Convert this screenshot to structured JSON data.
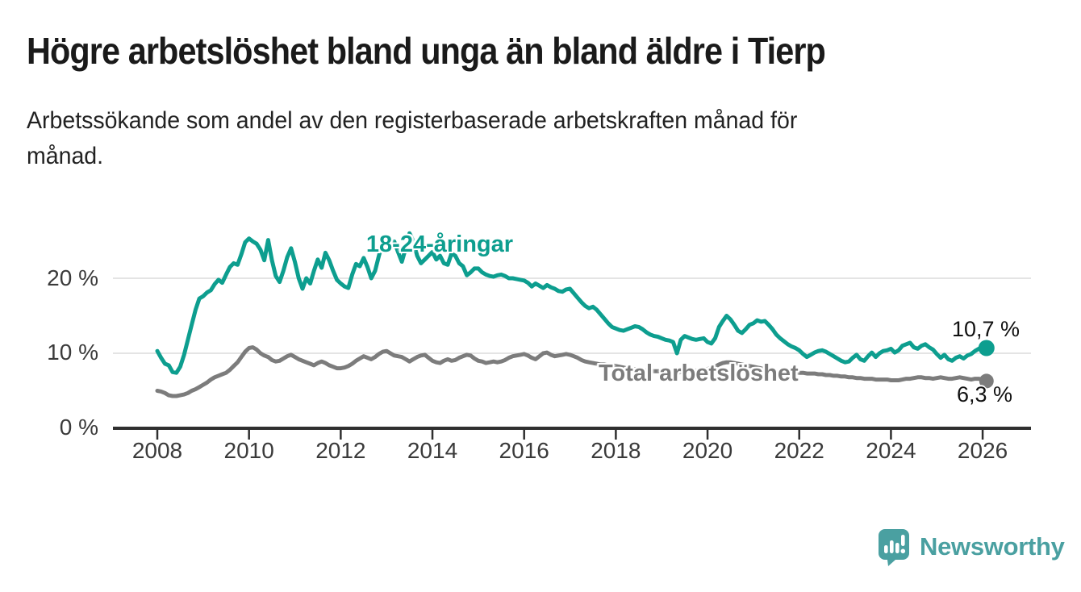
{
  "header": {
    "title": "Högre arbetslöshet bland unga än bland äldre i Tierp",
    "subtitle": "Arbetssökande som andel av den registerbaserade arbetskraften månad för\nmånad."
  },
  "footer": {
    "brand": "Newsworthy",
    "logo_icon": "speech-bubble-bar-chart-icon",
    "brand_color": "#4aa0a1"
  },
  "colors": {
    "background": "#ffffff",
    "title_text": "#1a1a1a",
    "tick_text": "#3a3a3a",
    "axis": "#2f2f2f",
    "gridline": "#dbdbdb",
    "youth_line": "#0d9e8f",
    "total_line": "#7c7c7c"
  },
  "chart_data": {
    "type": "line",
    "title": "Högre arbetslöshet bland unga än bland äldre i Tierp",
    "subtitle": "Arbetssökande som andel av den registerbaserade arbetskraften månad för månad.",
    "x_unit": "month",
    "x_start": "2008-01",
    "x_end": "2026-02",
    "x_tick_labels": [
      "2008",
      "2010",
      "2012",
      "2014",
      "2016",
      "2018",
      "2020",
      "2022",
      "2024",
      "2026"
    ],
    "y_tick_labels_top_to_bottom": [
      "20 %",
      "10 %",
      "0 %"
    ],
    "ylabel": "",
    "xlabel": "",
    "ylim": [
      0,
      27
    ],
    "grid": "horizontal",
    "legend_position": "inline-labels",
    "series": [
      {
        "name": "18-24-åringar",
        "color": "#0d9e8f",
        "end_label": "10,7 %",
        "end_value": 10.7,
        "values": [
          10.3,
          9.4,
          8.6,
          8.4,
          7.5,
          7.4,
          8.2,
          9.8,
          11.8,
          13.8,
          15.8,
          17.3,
          17.6,
          18.1,
          18.4,
          19.2,
          19.8,
          19.4,
          20.5,
          21.5,
          22.0,
          21.8,
          23.2,
          24.8,
          25.3,
          24.9,
          24.6,
          23.8,
          22.4,
          25.1,
          22.4,
          20.3,
          19.5,
          21.0,
          22.8,
          24.0,
          22.2,
          20.0,
          18.6,
          20.0,
          19.3,
          21.0,
          22.5,
          21.4,
          23.4,
          22.4,
          21.0,
          19.8,
          19.3,
          18.9,
          18.7,
          20.5,
          21.9,
          21.6,
          22.7,
          21.5,
          20.0,
          21.0,
          23.0,
          24.8,
          24.8,
          24.0,
          24.9,
          23.5,
          22.2,
          24.0,
          26.0,
          25.0,
          23.0,
          22.0,
          22.5,
          23.0,
          23.5,
          22.5,
          23.0,
          22.0,
          21.8,
          23.3,
          23.0,
          22.0,
          21.6,
          20.4,
          20.8,
          21.3,
          21.3,
          20.8,
          20.5,
          20.3,
          20.2,
          20.4,
          20.5,
          20.3,
          20.0,
          20.0,
          19.9,
          19.8,
          19.7,
          19.4,
          18.9,
          19.3,
          19.0,
          18.7,
          19.1,
          18.8,
          18.6,
          18.3,
          18.2,
          18.5,
          18.6,
          18.0,
          17.4,
          16.8,
          16.3,
          16.0,
          16.2,
          15.8,
          15.2,
          14.6,
          14.0,
          13.5,
          13.3,
          13.1,
          13.0,
          13.2,
          13.4,
          13.6,
          13.5,
          13.2,
          12.8,
          12.5,
          12.3,
          12.2,
          12.0,
          11.8,
          11.7,
          11.5,
          10.0,
          11.8,
          12.3,
          12.1,
          11.9,
          11.8,
          11.9,
          12.0,
          11.5,
          11.3,
          12.0,
          13.5,
          14.3,
          15.0,
          14.5,
          13.8,
          13.0,
          12.7,
          13.2,
          13.8,
          14.0,
          14.4,
          14.2,
          14.3,
          13.8,
          13.2,
          12.5,
          12.0,
          11.6,
          11.2,
          10.9,
          10.7,
          10.4,
          9.9,
          9.5,
          9.8,
          10.1,
          10.3,
          10.4,
          10.2,
          9.9,
          9.6,
          9.3,
          9.0,
          8.8,
          8.9,
          9.4,
          9.8,
          9.2,
          9.0,
          9.6,
          10.1,
          9.5,
          10.0,
          10.3,
          10.4,
          10.6,
          10.1,
          10.4,
          11.0,
          11.2,
          11.4,
          10.8,
          10.6,
          11.0,
          11.2,
          10.8,
          10.5,
          9.9,
          9.4,
          9.8,
          9.2,
          9.0,
          9.4,
          9.6,
          9.3,
          9.7,
          9.9,
          10.3,
          10.6,
          10.8,
          10.7
        ]
      },
      {
        "name": "Total arbetslöshet",
        "color": "#7c7c7c",
        "end_label": "6,3 %",
        "end_value": 6.3,
        "values": [
          5.0,
          4.9,
          4.7,
          4.4,
          4.3,
          4.3,
          4.4,
          4.5,
          4.7,
          5.0,
          5.2,
          5.5,
          5.8,
          6.1,
          6.5,
          6.8,
          7.0,
          7.2,
          7.4,
          7.8,
          8.3,
          8.8,
          9.5,
          10.2,
          10.7,
          10.8,
          10.5,
          10.0,
          9.7,
          9.5,
          9.1,
          8.9,
          9.0,
          9.3,
          9.6,
          9.8,
          9.5,
          9.2,
          9.0,
          8.8,
          8.6,
          8.4,
          8.7,
          8.9,
          8.7,
          8.4,
          8.2,
          8.0,
          8.0,
          8.1,
          8.3,
          8.6,
          9.0,
          9.3,
          9.6,
          9.4,
          9.2,
          9.5,
          9.9,
          10.2,
          10.3,
          10.0,
          9.7,
          9.6,
          9.5,
          9.2,
          8.9,
          9.2,
          9.5,
          9.7,
          9.8,
          9.4,
          9.0,
          8.8,
          8.7,
          9.0,
          9.2,
          9.0,
          9.1,
          9.4,
          9.6,
          9.8,
          9.7,
          9.3,
          9.0,
          8.9,
          8.7,
          8.8,
          8.9,
          8.8,
          8.9,
          9.1,
          9.4,
          9.6,
          9.7,
          9.8,
          9.9,
          9.7,
          9.4,
          9.2,
          9.6,
          10.0,
          10.1,
          9.8,
          9.6,
          9.7,
          9.8,
          9.9,
          9.8,
          9.6,
          9.4,
          9.1,
          8.9,
          8.8,
          8.7,
          8.6,
          8.5,
          8.5,
          8.4,
          8.4,
          8.3,
          8.2,
          8.1,
          8.0,
          7.9,
          7.9,
          7.8,
          7.8,
          7.7,
          7.7,
          7.6,
          7.6,
          7.6,
          7.5,
          7.5,
          7.4,
          7.4,
          7.5,
          7.5,
          7.6,
          7.6,
          7.7,
          7.7,
          7.8,
          7.9,
          8.0,
          8.2,
          8.5,
          8.7,
          8.8,
          8.8,
          8.7,
          8.6,
          8.5,
          8.4,
          8.3,
          8.2,
          8.1,
          8.0,
          7.9,
          7.8,
          7.7,
          7.6,
          7.5,
          7.5,
          7.4,
          7.4,
          7.4,
          7.4,
          7.4,
          7.3,
          7.3,
          7.3,
          7.2,
          7.2,
          7.1,
          7.1,
          7.0,
          7.0,
          6.9,
          6.9,
          6.8,
          6.8,
          6.7,
          6.7,
          6.6,
          6.6,
          6.6,
          6.5,
          6.5,
          6.5,
          6.5,
          6.4,
          6.4,
          6.4,
          6.5,
          6.6,
          6.6,
          6.7,
          6.8,
          6.8,
          6.7,
          6.7,
          6.6,
          6.7,
          6.8,
          6.7,
          6.6,
          6.6,
          6.7,
          6.8,
          6.7,
          6.6,
          6.5,
          6.6,
          6.6,
          6.5,
          6.3
        ]
      }
    ]
  }
}
